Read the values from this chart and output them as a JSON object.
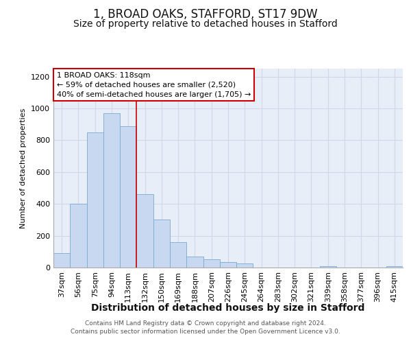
{
  "title": "1, BROAD OAKS, STAFFORD, ST17 9DW",
  "subtitle": "Size of property relative to detached houses in Stafford",
  "xlabel": "Distribution of detached houses by size in Stafford",
  "ylabel": "Number of detached properties",
  "categories": [
    "37sqm",
    "56sqm",
    "75sqm",
    "94sqm",
    "113sqm",
    "132sqm",
    "150sqm",
    "169sqm",
    "188sqm",
    "207sqm",
    "226sqm",
    "245sqm",
    "264sqm",
    "283sqm",
    "302sqm",
    "321sqm",
    "339sqm",
    "358sqm",
    "377sqm",
    "396sqm",
    "415sqm"
  ],
  "values": [
    90,
    400,
    850,
    970,
    890,
    460,
    300,
    160,
    70,
    50,
    35,
    25,
    0,
    0,
    0,
    0,
    10,
    0,
    0,
    0,
    10
  ],
  "bar_color": "#c8d8f0",
  "bar_edge_color": "#7aaad0",
  "highlight_bar_idx": 4,
  "highlight_color": "#cc0000",
  "annotation_line1": "1 BROAD OAKS: 118sqm",
  "annotation_line2": "← 59% of detached houses are smaller (2,520)",
  "annotation_line3": "40% of semi-detached houses are larger (1,705) →",
  "annotation_box_facecolor": "#ffffff",
  "annotation_box_edgecolor": "#cc0000",
  "ylim": [
    0,
    1250
  ],
  "yticks": [
    0,
    200,
    400,
    600,
    800,
    1000,
    1200
  ],
  "grid_color": "#d0d8e8",
  "plot_bg_color": "#e8eef8",
  "fig_bg_color": "#ffffff",
  "footer_line1": "Contains HM Land Registry data © Crown copyright and database right 2024.",
  "footer_line2": "Contains public sector information licensed under the Open Government Licence v3.0.",
  "title_fontsize": 12,
  "subtitle_fontsize": 10,
  "xlabel_fontsize": 10,
  "ylabel_fontsize": 8,
  "tick_fontsize": 8,
  "annotation_fontsize": 8,
  "footer_fontsize": 6.5
}
